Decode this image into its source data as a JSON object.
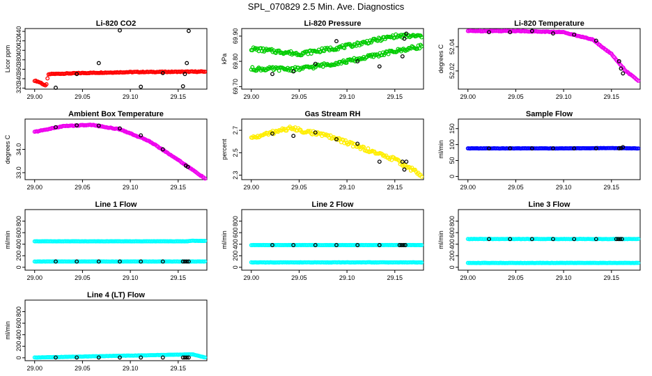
{
  "title": "SPL_070829  2.5 Min. Ave. Diagnostics",
  "chart_data": [
    {
      "type": "scatter",
      "title": "Li-820 CO2",
      "ylabel": "Licor ppm",
      "xticks": [
        "29.00",
        "29.05",
        "29.10",
        "29.15"
      ],
      "yticks": [
        "320",
        "340",
        "360",
        "380",
        "400",
        "420",
        "440"
      ],
      "xlim": [
        28.99,
        29.18
      ],
      "ylim": [
        318,
        446
      ],
      "color": "#ff0000",
      "series": [
        {
          "name": "data",
          "x": [
            29.0,
            29.003,
            29.006,
            29.009,
            29.012,
            29.014,
            29.017,
            29.05,
            29.1,
            29.178
          ],
          "y": [
            336,
            334,
            332,
            328,
            324,
            348,
            350,
            352,
            354,
            355
          ]
        },
        {
          "name": "black",
          "x": [
            29.022,
            29.044,
            29.067,
            29.089,
            29.111,
            29.134,
            29.155,
            29.157,
            29.159,
            29.161
          ],
          "y": [
            321,
            350,
            373,
            442,
            323,
            352,
            324,
            350,
            373,
            441
          ]
        }
      ]
    },
    {
      "type": "scatter",
      "title": "Li-820 Pressure",
      "ylabel": "kPa",
      "xticks": [
        "29.00",
        "29.05",
        "29.10",
        "29.15"
      ],
      "yticks": [
        "69.70",
        "69.80",
        "69.90"
      ],
      "xlim": [
        28.99,
        29.18
      ],
      "ylim": [
        69.69,
        69.93
      ],
      "color": "#00cc00",
      "series": [
        {
          "name": "upper",
          "x": [
            29.0,
            29.05,
            29.1,
            29.15,
            29.178
          ],
          "y": [
            69.85,
            69.83,
            69.86,
            69.9,
            69.9
          ]
        },
        {
          "name": "lower",
          "x": [
            29.0,
            29.05,
            29.1,
            29.15,
            29.178
          ],
          "y": [
            69.77,
            69.77,
            69.8,
            69.84,
            69.86
          ]
        },
        {
          "name": "black",
          "x": [
            29.022,
            29.044,
            29.067,
            29.089,
            29.111,
            29.134,
            29.158,
            29.16,
            29.162
          ],
          "y": [
            69.75,
            69.76,
            69.79,
            69.88,
            69.8,
            69.78,
            69.82,
            69.89,
            69.91
          ]
        }
      ]
    },
    {
      "type": "scatter",
      "title": "Li-820 Temperature",
      "ylabel": "degrees C",
      "xticks": [
        "29.00",
        "29.05",
        "29.10",
        "29.15"
      ],
      "yticks": [
        "52.02",
        "52.04"
      ],
      "xlim": [
        28.99,
        29.18
      ],
      "ylim": [
        52.005,
        52.055
      ],
      "color": "#ee00ee",
      "series": [
        {
          "name": "data",
          "x": [
            29.0,
            29.05,
            29.1,
            29.13,
            29.15,
            29.165,
            29.178
          ],
          "y": [
            52.053,
            52.053,
            52.052,
            52.046,
            52.034,
            52.02,
            52.012
          ]
        },
        {
          "name": "black",
          "x": [
            29.022,
            29.044,
            29.067,
            29.089,
            29.111,
            29.134,
            29.158,
            29.16,
            29.162
          ],
          "y": [
            52.052,
            52.052,
            52.053,
            52.051,
            52.05,
            52.045,
            52.028,
            52.022,
            52.018
          ]
        }
      ]
    },
    {
      "type": "scatter",
      "title": "Ambient Box Temperature",
      "ylabel": "degrees C",
      "xticks": [
        "29.00",
        "29.05",
        "29.10",
        "29.15"
      ],
      "yticks": [
        "33.0",
        "34.0"
      ],
      "xlim": [
        28.99,
        29.18
      ],
      "ylim": [
        32.7,
        35.3
      ],
      "color": "#ee00ee",
      "series": [
        {
          "name": "data",
          "x": [
            29.0,
            29.03,
            29.06,
            29.09,
            29.12,
            29.15,
            29.178
          ],
          "y": [
            34.75,
            35.0,
            35.05,
            34.85,
            34.35,
            33.55,
            32.75
          ]
        },
        {
          "name": "black",
          "x": [
            29.022,
            29.044,
            29.067,
            29.089,
            29.111,
            29.134,
            29.158,
            29.16
          ],
          "y": [
            34.95,
            35.03,
            35.02,
            34.9,
            34.6,
            34.0,
            33.3,
            33.25
          ]
        }
      ]
    },
    {
      "type": "scatter",
      "title": "Gas Stream RH",
      "ylabel": "percent",
      "xticks": [
        "29.00",
        "29.05",
        "29.10",
        "29.15"
      ],
      "yticks": [
        "2.3",
        "2.5",
        "2.7"
      ],
      "xlim": [
        28.99,
        29.18
      ],
      "ylim": [
        2.26,
        2.8
      ],
      "color": "#ffee00",
      "series": [
        {
          "name": "data",
          "x": [
            29.0,
            29.04,
            29.08,
            29.12,
            29.15,
            29.178
          ],
          "y": [
            2.63,
            2.72,
            2.65,
            2.53,
            2.44,
            2.3
          ]
        },
        {
          "name": "black",
          "x": [
            29.022,
            29.044,
            29.067,
            29.089,
            29.111,
            29.134,
            29.158,
            29.16,
            29.162
          ],
          "y": [
            2.67,
            2.65,
            2.68,
            2.62,
            2.58,
            2.42,
            2.42,
            2.35,
            2.42
          ]
        }
      ]
    },
    {
      "type": "scatter",
      "title": "Sample Flow",
      "ylabel": "ml/min",
      "xticks": [
        "29.00",
        "29.05",
        "29.10",
        "29.15"
      ],
      "yticks": [
        "0",
        "50",
        "100",
        "150"
      ],
      "xlim": [
        28.99,
        29.18
      ],
      "ylim": [
        -10,
        180
      ],
      "color": "#0000ff",
      "series": [
        {
          "name": "data",
          "x": [
            29.0,
            29.05,
            29.1,
            29.15,
            29.178
          ],
          "y": [
            88,
            88,
            88,
            89,
            88
          ]
        },
        {
          "name": "black",
          "x": [
            29.022,
            29.044,
            29.067,
            29.089,
            29.111,
            29.134,
            29.158,
            29.16,
            29.162
          ],
          "y": [
            88,
            88,
            88,
            88,
            88,
            88,
            88,
            89,
            92
          ]
        }
      ]
    },
    {
      "type": "scatter",
      "title": "Line 1 Flow",
      "ylabel": "ml/min",
      "xticks": [
        "29.00",
        "29.05",
        "29.10",
        "29.15"
      ],
      "yticks": [
        "0",
        "200",
        "400",
        "600",
        "800"
      ],
      "xlim": [
        28.99,
        29.18
      ],
      "ylim": [
        -50,
        1000
      ],
      "color": "#00ffff",
      "series": [
        {
          "name": "high",
          "x": [
            29.0,
            29.16,
            29.165,
            29.178
          ],
          "y": [
            450,
            450,
            460,
            455
          ]
        },
        {
          "name": "low",
          "x": [
            29.0,
            29.178
          ],
          "y": [
            100,
            100
          ]
        },
        {
          "name": "black",
          "x": [
            29.022,
            29.044,
            29.067,
            29.089,
            29.111,
            29.134,
            29.155,
            29.157,
            29.159,
            29.161
          ],
          "y": [
            100,
            100,
            100,
            100,
            100,
            100,
            100,
            100,
            100,
            100
          ]
        }
      ]
    },
    {
      "type": "scatter",
      "title": "Line 2 Flow",
      "ylabel": "ml/min",
      "xticks": [
        "29.00",
        "29.05",
        "29.10",
        "29.15"
      ],
      "yticks": [
        "0",
        "200",
        "400",
        "600",
        "800"
      ],
      "xlim": [
        28.99,
        29.18
      ],
      "ylim": [
        -50,
        1000
      ],
      "color": "#00ffff",
      "series": [
        {
          "name": "high",
          "x": [
            29.0,
            29.178
          ],
          "y": [
            385,
            385
          ]
        },
        {
          "name": "low",
          "x": [
            29.0,
            29.178
          ],
          "y": [
            85,
            85
          ]
        },
        {
          "name": "black",
          "x": [
            29.022,
            29.044,
            29.067,
            29.089,
            29.111,
            29.134,
            29.155,
            29.157,
            29.159,
            29.161
          ],
          "y": [
            385,
            385,
            385,
            385,
            385,
            385,
            385,
            385,
            385,
            385
          ]
        }
      ]
    },
    {
      "type": "scatter",
      "title": "Line 3 Flow",
      "ylabel": "ml/min",
      "xticks": [
        "29.00",
        "29.05",
        "29.10",
        "29.15"
      ],
      "yticks": [
        "0",
        "200",
        "400",
        "600",
        "800"
      ],
      "xlim": [
        28.99,
        29.18
      ],
      "ylim": [
        -50,
        1000
      ],
      "color": "#00ffff",
      "series": [
        {
          "name": "high",
          "x": [
            29.0,
            29.178
          ],
          "y": [
            490,
            490
          ]
        },
        {
          "name": "low",
          "x": [
            29.0,
            29.178
          ],
          "y": [
            75,
            75
          ]
        },
        {
          "name": "black",
          "x": [
            29.022,
            29.044,
            29.067,
            29.089,
            29.111,
            29.134,
            29.155,
            29.157,
            29.159,
            29.161
          ],
          "y": [
            490,
            490,
            490,
            490,
            490,
            490,
            490,
            490,
            490,
            490
          ]
        }
      ]
    },
    {
      "type": "scatter",
      "title": "Line 4 (LT) Flow",
      "ylabel": "ml/min",
      "xticks": [
        "29.00",
        "29.05",
        "29.10",
        "29.15"
      ],
      "yticks": [
        "0",
        "200",
        "400",
        "600",
        "800"
      ],
      "xlim": [
        28.99,
        29.18
      ],
      "ylim": [
        -50,
        1000
      ],
      "color": "#00ffff",
      "series": [
        {
          "name": "data",
          "x": [
            29.0,
            29.165,
            29.178
          ],
          "y": [
            5,
            60,
            5
          ]
        },
        {
          "name": "black",
          "x": [
            29.022,
            29.044,
            29.067,
            29.089,
            29.111,
            29.134,
            29.155,
            29.157,
            29.159,
            29.161
          ],
          "y": [
            5,
            5,
            5,
            5,
            5,
            5,
            5,
            5,
            5,
            5
          ]
        }
      ]
    }
  ]
}
